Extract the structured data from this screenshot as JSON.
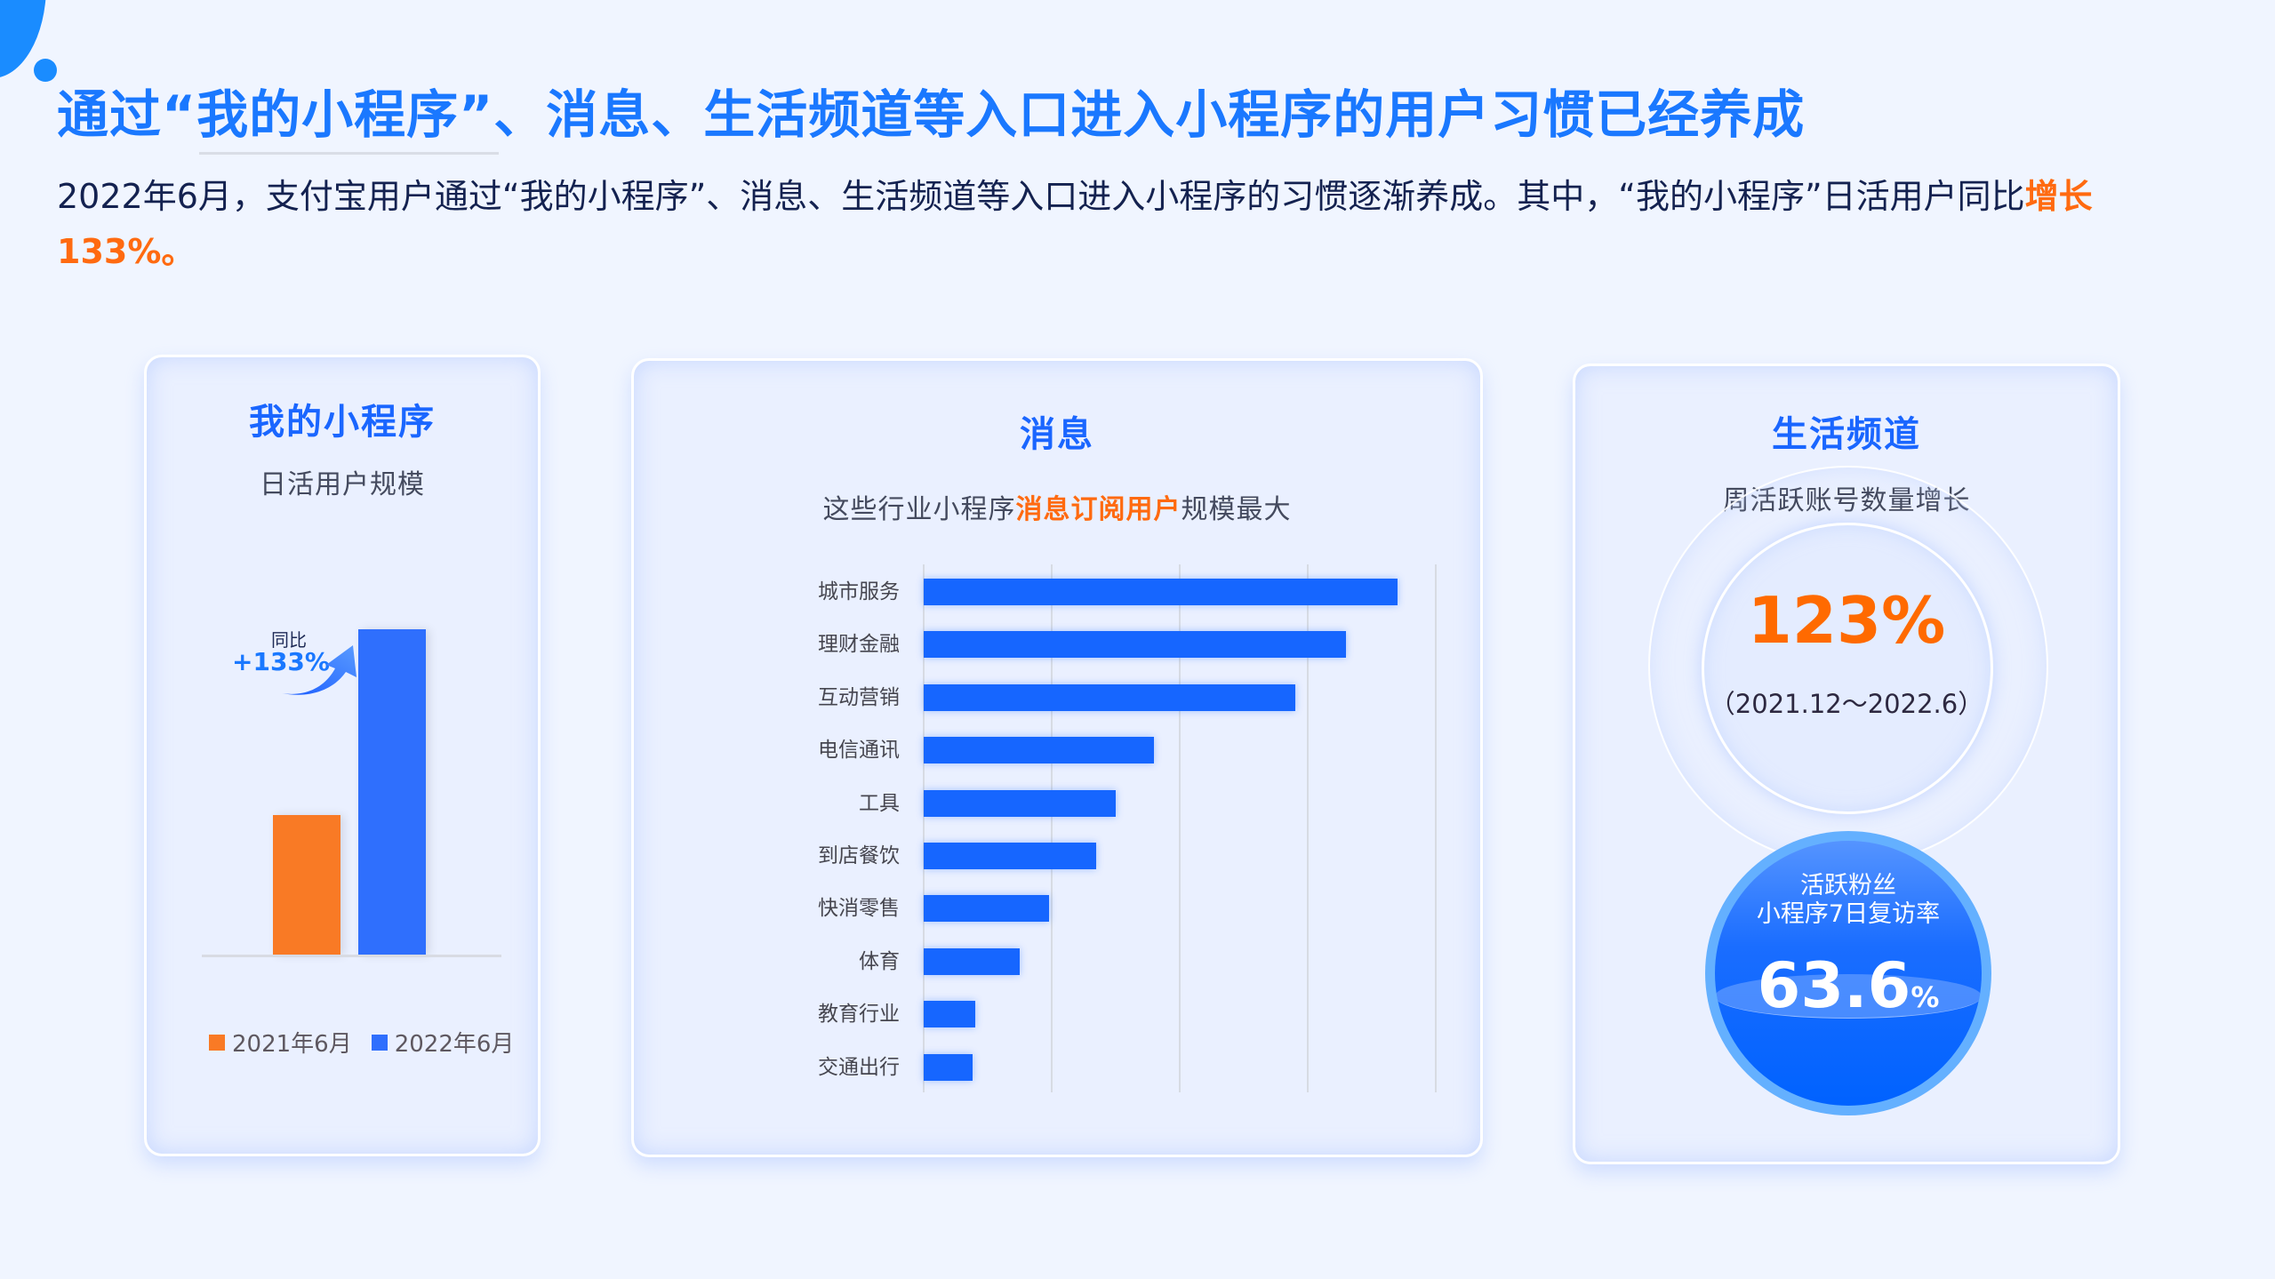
{
  "header": {
    "title": "通过“我的小程序”、消息、生活频道等入口进入小程序的用户习惯已经养成",
    "intro_prefix": "2022年6月，支付宝用户通过“我的小程序”、消息、生活频道等入口进入小程序的习惯逐渐养成。其中，“我的小程序”日活用户同比",
    "intro_highlight": "增长133%。"
  },
  "card_mini": {
    "title": "我的小程序",
    "subtitle": "日活用户规模",
    "yoy_label": "同比",
    "yoy_value": "+133%",
    "legend": [
      {
        "label": "2021年6月",
        "color": "#f97a25"
      },
      {
        "label": "2022年6月",
        "color": "#2f6ffd"
      }
    ]
  },
  "card_msg": {
    "title": "消息",
    "subtitle_prefix": "这些行业小程序",
    "subtitle_highlight": "消息订阅用户",
    "subtitle_suffix": "规模最大"
  },
  "card_life": {
    "title": "生活频道",
    "subtitle": "周活跃账号数量增长",
    "growth_value": "123%",
    "growth_period": "（2021.12～2022.6）",
    "revisit_line1": "活跃粉丝",
    "revisit_line2": "小程序7日复访率",
    "revisit_value": "63.6",
    "revisit_unit": "%"
  },
  "colors": {
    "accent_blue": "#1a66ff",
    "accent_orange": "#ff6a10",
    "bar_2021": "#f97a25",
    "bar_2022": "#2f6ffd",
    "bar_msg": "#1666ff"
  },
  "chart_data": [
    {
      "type": "bar",
      "title": "我的小程序 日活用户规模",
      "categories": [
        "2021年6月",
        "2022年6月"
      ],
      "values": [
        100,
        233
      ],
      "annotation": "同比 +133%",
      "xlabel": "",
      "ylabel": "",
      "legend_position": "bottom",
      "grid": false
    },
    {
      "type": "bar",
      "orientation": "horizontal",
      "title": "这些行业小程序消息订阅用户规模最大",
      "categories": [
        "城市服务",
        "理财金融",
        "互动营销",
        "电信通讯",
        "工具",
        "到店餐饮",
        "快消零售",
        "体育",
        "教育行业",
        "交通出行"
      ],
      "values": [
        3.7,
        3.3,
        2.9,
        1.8,
        1.5,
        1.35,
        0.98,
        0.75,
        0.4,
        0.38
      ],
      "xlim": [
        0,
        4
      ],
      "grid": true,
      "xlabel": "",
      "ylabel": "",
      "note": "relative scale, no axis tick labels shown"
    },
    {
      "type": "table",
      "title": "生活频道",
      "rows": [
        {
          "metric": "周活跃账号数量增长",
          "value": "123%",
          "period": "2021.12～2022.6"
        },
        {
          "metric": "活跃粉丝小程序7日复访率",
          "value": "63.6%"
        }
      ]
    }
  ]
}
